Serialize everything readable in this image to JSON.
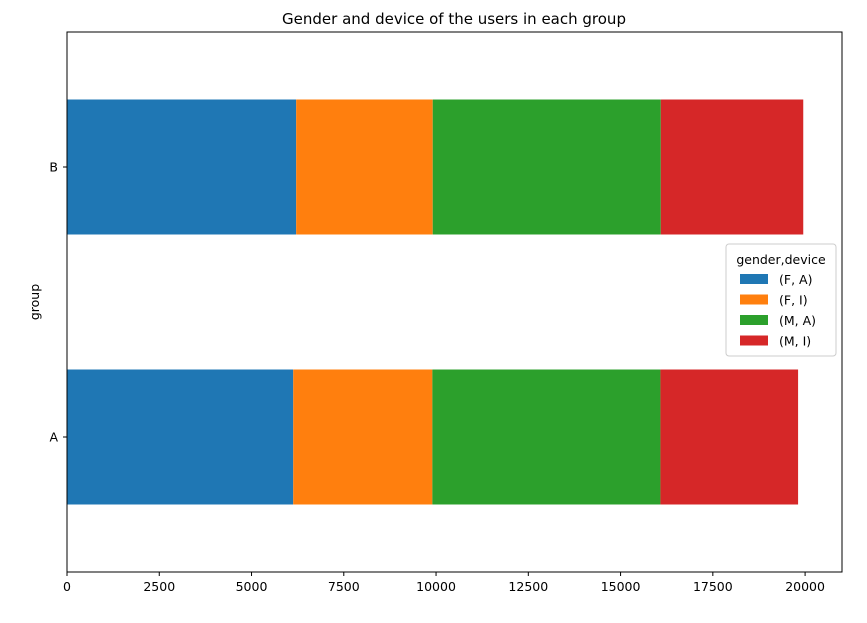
{
  "chart_data": {
    "type": "bar",
    "orientation": "horizontal",
    "stacked": true,
    "title": "Gender and device of the users in each group",
    "xlabel": "",
    "ylabel": "group",
    "categories": [
      "A",
      "B"
    ],
    "xlim": [
      0,
      21000
    ],
    "x_ticks": [
      0,
      2500,
      5000,
      7500,
      10000,
      12500,
      15000,
      17500,
      20000
    ],
    "x_tick_labels": [
      "0",
      "2500",
      "5000",
      "7500",
      "10000",
      "12500",
      "15000",
      "17500",
      "20000"
    ],
    "grid": false,
    "legend_title": "gender,device",
    "legend_position": "center-right",
    "series": [
      {
        "name": "(F, A)",
        "color": "#1f77b4",
        "values": [
          6130,
          6210
        ]
      },
      {
        "name": "(F, I)",
        "color": "#ff7f0e",
        "values": [
          3770,
          3700
        ]
      },
      {
        "name": "(M, A)",
        "color": "#2ca02c",
        "values": [
          6180,
          6180
        ]
      },
      {
        "name": "(M, I)",
        "color": "#d62728",
        "values": [
          3730,
          3860
        ]
      }
    ]
  }
}
